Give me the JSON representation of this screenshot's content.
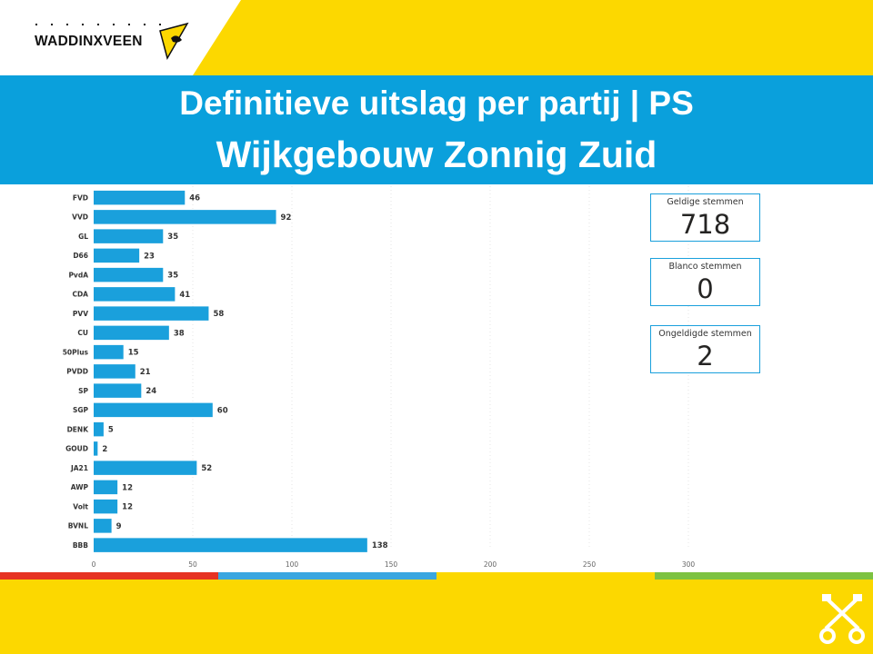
{
  "header": {
    "logo_text": "WADDINXVEEN",
    "title_line1": "Definitieve uitslag per partij | PS",
    "title_line2": "Wijkgebouw Zonnig Zuid"
  },
  "colors": {
    "yellow": "#fcd800",
    "banner_blue": "#0aa0dc",
    "bar_blue": "#1aa0dc",
    "stripe_red": "#e63323",
    "stripe_blue": "#3aa6e0",
    "stripe_yellow": "#fcd800",
    "stripe_green": "#7dc242"
  },
  "kpis": [
    {
      "label": "Geldige stemmen",
      "value": "718"
    },
    {
      "label": "Blanco stemmen",
      "value": "0"
    },
    {
      "label": "Ongeldigde stemmen",
      "value": "2"
    }
  ],
  "chart_data": {
    "type": "bar",
    "orientation": "horizontal",
    "categories": [
      "FVD",
      "VVD",
      "GL",
      "D66",
      "PvdA",
      "CDA",
      "PVV",
      "CU",
      "50Plus",
      "PVDD",
      "SP",
      "SGP",
      "DENK",
      "GOUD",
      "JA21",
      "AWP",
      "Volt",
      "BVNL",
      "BBB"
    ],
    "values": [
      46,
      92,
      35,
      23,
      35,
      41,
      58,
      38,
      15,
      21,
      24,
      60,
      5,
      2,
      52,
      12,
      12,
      9,
      138
    ],
    "xlim": [
      0,
      300
    ],
    "xticks": [
      0,
      50,
      100,
      150,
      200,
      250,
      300
    ],
    "grid": true,
    "data_labels": true
  }
}
